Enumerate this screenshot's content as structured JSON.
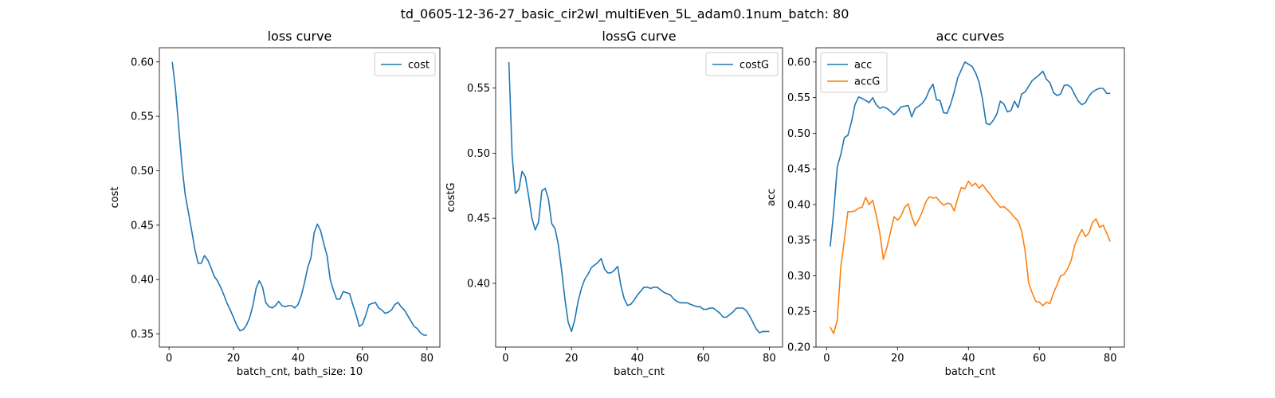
{
  "figure": {
    "suptitle": "td_0605-12-36-27_basic_cir2wl_multiEven_5L_adam0.1num_batch: 80"
  },
  "colors": {
    "blue": "#1f77b4",
    "orange": "#ff7f0e"
  },
  "chart_data": [
    {
      "type": "line",
      "title": "loss curve",
      "xlabel": "batch_cnt, bath_size: 10",
      "ylabel": "cost",
      "xlim": [
        -3,
        84
      ],
      "ylim": [
        0.338,
        0.613
      ],
      "xticks": [
        0,
        20,
        40,
        60,
        80
      ],
      "yticks": [
        0.35,
        0.4,
        0.45,
        0.5,
        0.55,
        0.6
      ],
      "ytick_labels": [
        "0.35",
        "0.40",
        "0.45",
        "0.50",
        "0.55",
        "0.60"
      ],
      "legend": "upper right",
      "series": [
        {
          "name": "cost",
          "color": "#1f77b4",
          "x": [
            1,
            2,
            3,
            4,
            5,
            6,
            7,
            8,
            9,
            10,
            11,
            12,
            13,
            14,
            15,
            16,
            17,
            18,
            19,
            20,
            21,
            22,
            23,
            24,
            25,
            26,
            27,
            28,
            29,
            30,
            31,
            32,
            33,
            34,
            35,
            36,
            37,
            38,
            39,
            40,
            41,
            42,
            43,
            44,
            45,
            46,
            47,
            48,
            49,
            50,
            51,
            52,
            53,
            54,
            55,
            56,
            57,
            58,
            59,
            60,
            61,
            62,
            63,
            64,
            65,
            66,
            67,
            68,
            69,
            70,
            71,
            72,
            73,
            74,
            75,
            76,
            77,
            78,
            79,
            80
          ],
          "y": [
            0.6,
            0.575,
            0.54,
            0.505,
            0.478,
            0.462,
            0.445,
            0.428,
            0.415,
            0.415,
            0.422,
            0.418,
            0.411,
            0.403,
            0.399,
            0.393,
            0.386,
            0.378,
            0.372,
            0.365,
            0.358,
            0.353,
            0.354,
            0.358,
            0.365,
            0.376,
            0.392,
            0.399,
            0.393,
            0.379,
            0.375,
            0.374,
            0.376,
            0.38,
            0.376,
            0.375,
            0.376,
            0.376,
            0.374,
            0.377,
            0.385,
            0.397,
            0.411,
            0.42,
            0.443,
            0.451,
            0.445,
            0.433,
            0.422,
            0.4,
            0.39,
            0.382,
            0.382,
            0.389,
            0.388,
            0.387,
            0.377,
            0.368,
            0.357,
            0.359,
            0.367,
            0.377,
            0.378,
            0.379,
            0.374,
            0.372,
            0.369,
            0.37,
            0.372,
            0.377,
            0.379,
            0.375,
            0.372,
            0.367,
            0.362,
            0.357,
            0.355,
            0.351,
            0.349,
            0.349
          ]
        }
      ]
    },
    {
      "type": "line",
      "title": "lossG curve",
      "xlabel": "batch_cnt",
      "ylabel": "costG",
      "xlim": [
        -3,
        84
      ],
      "ylim": [
        0.351,
        0.581
      ],
      "xticks": [
        0,
        20,
        40,
        60,
        80
      ],
      "yticks": [
        0.4,
        0.45,
        0.5,
        0.55
      ],
      "ytick_labels": [
        "0.40",
        "0.45",
        "0.50",
        "0.55"
      ],
      "legend": "upper right",
      "series": [
        {
          "name": "costG",
          "color": "#1f77b4",
          "x": [
            1,
            2,
            3,
            4,
            5,
            6,
            7,
            8,
            9,
            10,
            11,
            12,
            13,
            14,
            15,
            16,
            17,
            18,
            19,
            20,
            21,
            22,
            23,
            24,
            25,
            26,
            27,
            28,
            29,
            30,
            31,
            32,
            33,
            34,
            35,
            36,
            37,
            38,
            39,
            40,
            41,
            42,
            43,
            44,
            45,
            46,
            47,
            48,
            49,
            50,
            51,
            52,
            53,
            54,
            55,
            56,
            57,
            58,
            59,
            60,
            61,
            62,
            63,
            64,
            65,
            66,
            67,
            68,
            69,
            70,
            71,
            72,
            73,
            74,
            75,
            76,
            77,
            78,
            79,
            80
          ],
          "y": [
            0.57,
            0.498,
            0.469,
            0.472,
            0.486,
            0.482,
            0.467,
            0.45,
            0.441,
            0.447,
            0.471,
            0.473,
            0.465,
            0.446,
            0.442,
            0.43,
            0.41,
            0.388,
            0.37,
            0.363,
            0.372,
            0.386,
            0.396,
            0.403,
            0.407,
            0.412,
            0.414,
            0.416,
            0.419,
            0.411,
            0.408,
            0.408,
            0.41,
            0.413,
            0.398,
            0.388,
            0.383,
            0.384,
            0.387,
            0.391,
            0.394,
            0.397,
            0.397,
            0.396,
            0.397,
            0.397,
            0.395,
            0.393,
            0.392,
            0.391,
            0.388,
            0.386,
            0.385,
            0.385,
            0.385,
            0.384,
            0.383,
            0.382,
            0.382,
            0.38,
            0.38,
            0.381,
            0.381,
            0.379,
            0.377,
            0.374,
            0.374,
            0.376,
            0.378,
            0.381,
            0.381,
            0.381,
            0.379,
            0.375,
            0.37,
            0.365,
            0.362,
            0.363,
            0.363,
            0.363
          ]
        }
      ]
    },
    {
      "type": "line",
      "title": "acc curves",
      "xlabel": "batch_cnt",
      "ylabel": "acc",
      "xlim": [
        -3,
        84
      ],
      "ylim": [
        0.2,
        0.62
      ],
      "xticks": [
        0,
        20,
        40,
        60,
        80
      ],
      "yticks": [
        0.2,
        0.25,
        0.3,
        0.35,
        0.4,
        0.45,
        0.5,
        0.55,
        0.6
      ],
      "ytick_labels": [
        "0.20",
        "0.25",
        "0.30",
        "0.35",
        "0.40",
        "0.45",
        "0.50",
        "0.55",
        "0.60"
      ],
      "legend": "upper left",
      "series": [
        {
          "name": "acc",
          "color": "#1f77b4",
          "x": [
            1,
            2,
            3,
            4,
            5,
            6,
            7,
            8,
            9,
            10,
            11,
            12,
            13,
            14,
            15,
            16,
            17,
            18,
            19,
            20,
            21,
            22,
            23,
            24,
            25,
            26,
            27,
            28,
            29,
            30,
            31,
            32,
            33,
            34,
            35,
            36,
            37,
            38,
            39,
            40,
            41,
            42,
            43,
            44,
            45,
            46,
            47,
            48,
            49,
            50,
            51,
            52,
            53,
            54,
            55,
            56,
            57,
            58,
            59,
            60,
            61,
            62,
            63,
            64,
            65,
            66,
            67,
            68,
            69,
            70,
            71,
            72,
            73,
            74,
            75,
            76,
            77,
            78,
            79,
            80
          ],
          "y": [
            0.341,
            0.39,
            0.453,
            0.47,
            0.494,
            0.497,
            0.516,
            0.54,
            0.551,
            0.549,
            0.546,
            0.543,
            0.55,
            0.54,
            0.535,
            0.537,
            0.535,
            0.531,
            0.526,
            0.531,
            0.537,
            0.538,
            0.539,
            0.523,
            0.535,
            0.538,
            0.542,
            0.549,
            0.561,
            0.569,
            0.547,
            0.546,
            0.529,
            0.528,
            0.541,
            0.558,
            0.578,
            0.589,
            0.6,
            0.597,
            0.594,
            0.585,
            0.572,
            0.547,
            0.514,
            0.512,
            0.518,
            0.527,
            0.545,
            0.541,
            0.53,
            0.532,
            0.545,
            0.536,
            0.555,
            0.558,
            0.566,
            0.574,
            0.578,
            0.582,
            0.587,
            0.576,
            0.571,
            0.557,
            0.553,
            0.555,
            0.567,
            0.568,
            0.564,
            0.554,
            0.545,
            0.54,
            0.543,
            0.552,
            0.558,
            0.561,
            0.563,
            0.563,
            0.556,
            0.556
          ]
        },
        {
          "name": "accG",
          "color": "#ff7f0e",
          "x": [
            1,
            2,
            3,
            4,
            5,
            6,
            7,
            8,
            9,
            10,
            11,
            12,
            13,
            14,
            15,
            16,
            17,
            18,
            19,
            20,
            21,
            22,
            23,
            24,
            25,
            26,
            27,
            28,
            29,
            30,
            31,
            32,
            33,
            34,
            35,
            36,
            37,
            38,
            39,
            40,
            41,
            42,
            43,
            44,
            45,
            46,
            47,
            48,
            49,
            50,
            51,
            52,
            53,
            54,
            55,
            56,
            57,
            58,
            59,
            60,
            61,
            62,
            63,
            64,
            65,
            66,
            67,
            68,
            69,
            70,
            71,
            72,
            73,
            74,
            75,
            76,
            77,
            78,
            79,
            80
          ],
          "y": [
            0.228,
            0.219,
            0.238,
            0.312,
            0.35,
            0.39,
            0.39,
            0.391,
            0.395,
            0.396,
            0.41,
            0.4,
            0.406,
            0.385,
            0.36,
            0.323,
            0.34,
            0.361,
            0.383,
            0.378,
            0.384,
            0.396,
            0.401,
            0.383,
            0.37,
            0.379,
            0.39,
            0.404,
            0.411,
            0.409,
            0.41,
            0.404,
            0.399,
            0.402,
            0.401,
            0.391,
            0.409,
            0.424,
            0.422,
            0.433,
            0.426,
            0.43,
            0.423,
            0.428,
            0.421,
            0.415,
            0.408,
            0.402,
            0.396,
            0.397,
            0.393,
            0.388,
            0.382,
            0.377,
            0.363,
            0.335,
            0.29,
            0.276,
            0.264,
            0.263,
            0.258,
            0.263,
            0.261,
            0.276,
            0.287,
            0.3,
            0.302,
            0.31,
            0.322,
            0.343,
            0.355,
            0.365,
            0.355,
            0.36,
            0.375,
            0.38,
            0.368,
            0.371,
            0.36,
            0.348
          ]
        }
      ]
    }
  ]
}
